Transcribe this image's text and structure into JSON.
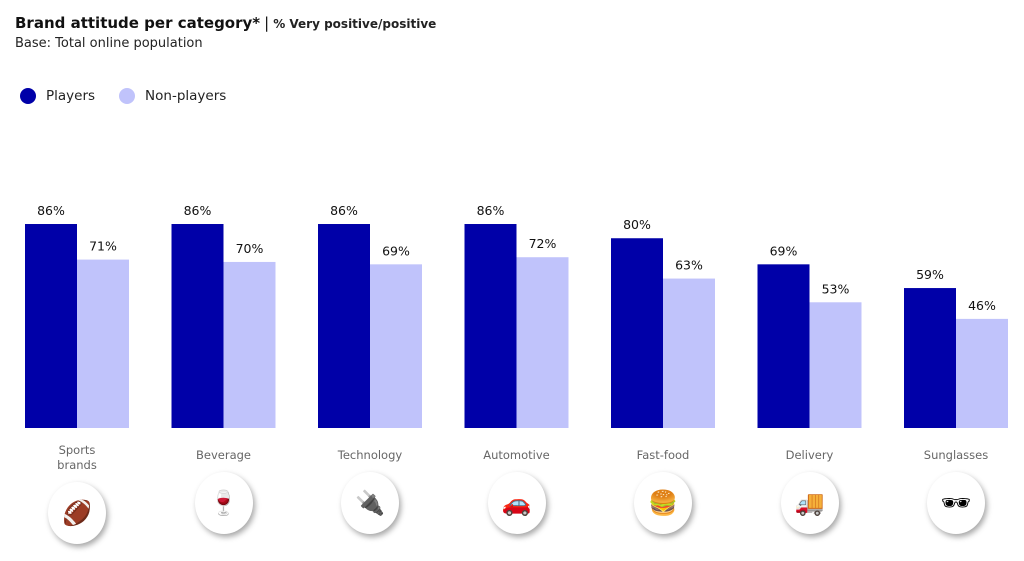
{
  "header": {
    "title": "Brand attitude per category*",
    "separator": "|",
    "subtitle": "% Very positive/positive",
    "base": "Base: Total online population"
  },
  "chart_data": {
    "type": "bar",
    "title": "Brand attitude per category*",
    "subtitle": "% Very positive/positive",
    "categories": [
      "Sports brands",
      "Beverage",
      "Technology",
      "Automotive",
      "Fast-food",
      "Delivery",
      "Sunglasses"
    ],
    "series": [
      {
        "name": "Players",
        "color": "#0000a8",
        "values": [
          86,
          86,
          86,
          86,
          80,
          69,
          59
        ]
      },
      {
        "name": "Non-players",
        "color": "#c0c3fb",
        "values": [
          71,
          70,
          69,
          72,
          63,
          53,
          46
        ]
      }
    ],
    "ylim": [
      0,
      100
    ],
    "grid": false,
    "legend": "top-left",
    "value_suffix": "%"
  },
  "icons": [
    {
      "name": "sports-balls-icon",
      "glyph": "🏈"
    },
    {
      "name": "bottle-wine-icon",
      "glyph": "🍷"
    },
    {
      "name": "plug-icon",
      "glyph": "🔌"
    },
    {
      "name": "car-icon",
      "glyph": "🚗"
    },
    {
      "name": "burger-drink-icon",
      "glyph": "🍔"
    },
    {
      "name": "delivery-truck-icon",
      "glyph": "🚚"
    },
    {
      "name": "sunglasses-icon",
      "glyph": "🕶"
    }
  ]
}
